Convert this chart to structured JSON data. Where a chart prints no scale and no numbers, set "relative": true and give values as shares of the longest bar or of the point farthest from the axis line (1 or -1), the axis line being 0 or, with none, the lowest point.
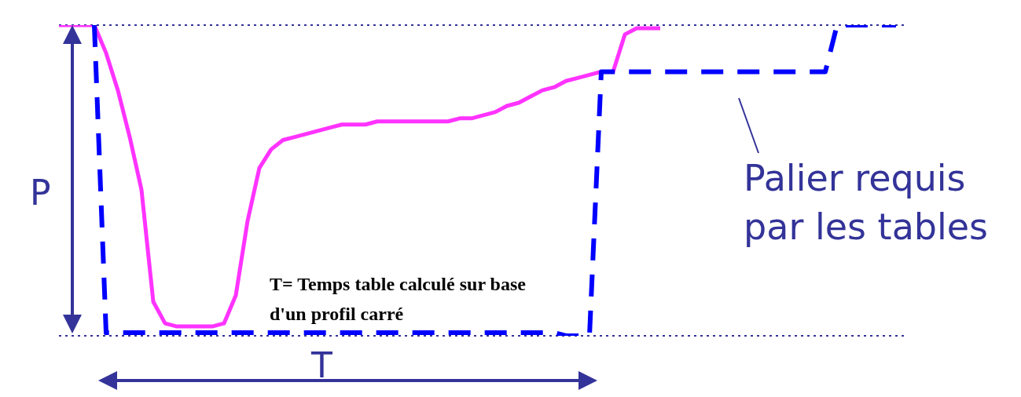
{
  "chart_data": {
    "type": "line",
    "relative": true,
    "categories": [
      null,
      null,
      null,
      null,
      null,
      null,
      null,
      null,
      null,
      null,
      null,
      null,
      null,
      null,
      null,
      null,
      null,
      null,
      null,
      null,
      null,
      null,
      null,
      null,
      null,
      null,
      null,
      null,
      null,
      null,
      null,
      null,
      null,
      null,
      null,
      null,
      null,
      null,
      null,
      null,
      null,
      null,
      null,
      null,
      null,
      null,
      null,
      null,
      null,
      null,
      null,
      null,
      null,
      null,
      null,
      null,
      null,
      null,
      null,
      null,
      null,
      null,
      null,
      null,
      null,
      null,
      null,
      null,
      null,
      null,
      null,
      null,
      null
    ],
    "series": [
      {
        "color": "#ff33ff",
        "line_style": "solid",
        "values": [
          1,
          1,
          1,
          1,
          0.91,
          0.79,
          0.64,
          0.47,
          0.11,
          0.04,
          0.03,
          0.03,
          0.03,
          0.03,
          0.04,
          0.13,
          0.37,
          0.54,
          0.6,
          0.63,
          0.64,
          0.65,
          0.66,
          0.67,
          0.68,
          0.68,
          0.68,
          0.69,
          0.69,
          0.69,
          0.69,
          0.69,
          0.69,
          0.69,
          0.7,
          0.7,
          0.71,
          0.72,
          0.74,
          0.75,
          0.77,
          0.79,
          0.8,
          0.82,
          0.83,
          0.84,
          0.85,
          0.85,
          0.97,
          0.99,
          0.99,
          0.99,
          null,
          null,
          null,
          null,
          null,
          null,
          null,
          null,
          null,
          null,
          null,
          null,
          null,
          null,
          null,
          null,
          null,
          null,
          null,
          null,
          null
        ]
      },
      {
        "color": "#0000ff",
        "line_style": "dashed",
        "values": [
          null,
          null,
          null,
          1,
          0.01,
          0.01,
          0.01,
          0.01,
          0.01,
          0.01,
          0.01,
          0.01,
          0.01,
          0.01,
          0.01,
          0.01,
          0.01,
          0.01,
          0.01,
          0.01,
          0.01,
          0.01,
          0.01,
          0.01,
          0.01,
          0.01,
          0.01,
          0.01,
          0.01,
          0.01,
          0.01,
          0.01,
          0.01,
          0.01,
          0.01,
          0.01,
          0.01,
          0.01,
          0.01,
          0.01,
          0.01,
          0.01,
          0.01,
          0,
          0,
          0,
          0.85,
          0.85,
          0.85,
          0.85,
          0.85,
          0.85,
          0.85,
          0.85,
          0.85,
          0.85,
          0.85,
          0.85,
          0.85,
          0.85,
          0.85,
          0.85,
          0.85,
          0.85,
          0.85,
          0.85,
          1,
          1,
          1,
          1,
          1,
          1,
          null
        ]
      }
    ],
    "ref_lines": [
      {
        "axis": "y",
        "value": 1,
        "color": "#333399",
        "line_style": "dotted"
      },
      {
        "axis": "y",
        "value": 0,
        "color": "#333399",
        "line_style": "dotted"
      }
    ],
    "annotations": [
      "P",
      "T",
      "T= Temps table calculé sur base d'un profil carré",
      "Palier requis par les tables"
    ]
  }
}
